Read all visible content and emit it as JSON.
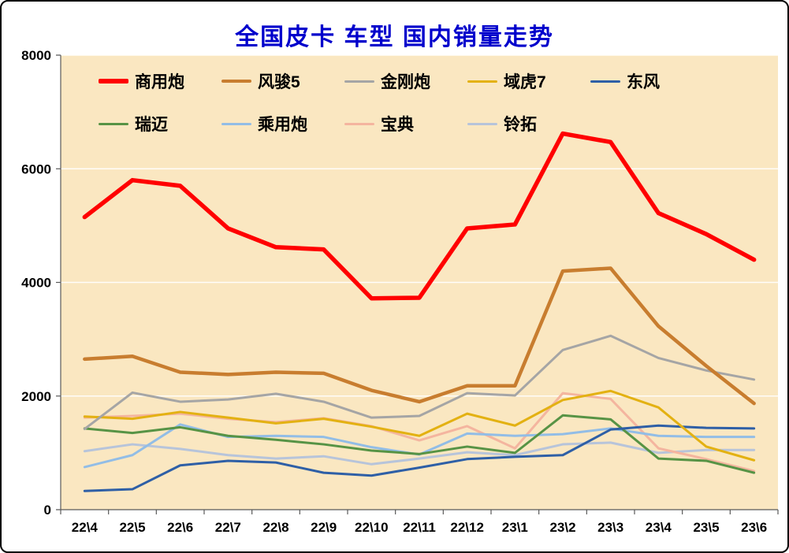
{
  "window": {
    "title": "全国皮卡 车型 国内销量走势"
  },
  "chart_data": {
    "type": "line",
    "title": "全国皮卡 车型 国内销量走势",
    "title_color": "#0000CC",
    "plot_bg": "#FAE7C1",
    "axis_color": "#595959",
    "gridline_color": "rgba(255,255,255,0.9)",
    "grid": "horizontal",
    "legend_position": "top-left-inside",
    "xlabel": "",
    "ylabel": "",
    "ylim": [
      0,
      8000
    ],
    "y_ticks": [
      0,
      2000,
      4000,
      6000,
      8000
    ],
    "categories": [
      "22\\4",
      "22\\5",
      "22\\6",
      "22\\7",
      "22\\8",
      "22\\9",
      "22\\10",
      "22\\11",
      "22\\12",
      "23\\1",
      "23\\2",
      "23\\3",
      "23\\4",
      "23\\5",
      "23\\6"
    ],
    "series": [
      {
        "name": "商用炮",
        "color": "#FF0000",
        "width": 5.5,
        "values": [
          5150,
          5800,
          5700,
          4950,
          4620,
          4580,
          3720,
          3730,
          4950,
          5020,
          6620,
          6470,
          5220,
          4850,
          4400
        ]
      },
      {
        "name": "风骏5",
        "color": "#C87D2F",
        "width": 4.5,
        "values": [
          2650,
          2700,
          2420,
          2380,
          2420,
          2400,
          2100,
          1900,
          2180,
          2180,
          4200,
          4250,
          3230,
          2530,
          1870
        ]
      },
      {
        "name": "金刚炮",
        "color": "#A5A5A5",
        "width": 3,
        "values": [
          1420,
          2060,
          1900,
          1940,
          2040,
          1900,
          1620,
          1650,
          2050,
          2010,
          2810,
          3060,
          2670,
          2450,
          2290
        ]
      },
      {
        "name": "域虎7",
        "color": "#E3B112",
        "width": 3,
        "values": [
          1640,
          1600,
          1720,
          1620,
          1520,
          1600,
          1460,
          1300,
          1690,
          1480,
          1930,
          2090,
          1800,
          1110,
          870
        ]
      },
      {
        "name": "东风",
        "color": "#2E5FA6",
        "width": 3,
        "values": [
          330,
          360,
          780,
          860,
          830,
          650,
          600,
          740,
          890,
          930,
          960,
          1410,
          1480,
          1440,
          1430
        ]
      },
      {
        "name": "瑞迈",
        "color": "#579345",
        "width": 3,
        "values": [
          1430,
          1350,
          1450,
          1300,
          1230,
          1150,
          1040,
          980,
          1110,
          1000,
          1660,
          1590,
          900,
          860,
          650
        ]
      },
      {
        "name": "乘用炮",
        "color": "#92BDE6",
        "width": 3,
        "values": [
          750,
          960,
          1500,
          1280,
          1300,
          1280,
          1100,
          970,
          1340,
          1300,
          1330,
          1430,
          1300,
          1280,
          1280
        ]
      },
      {
        "name": "宝典",
        "color": "#F4B59F",
        "width": 3,
        "values": [
          1620,
          1650,
          1690,
          1600,
          1540,
          1610,
          1470,
          1220,
          1470,
          1080,
          2050,
          1950,
          1080,
          890,
          680
        ]
      },
      {
        "name": "铃拓",
        "color": "#B7C4DA",
        "width": 3,
        "values": [
          1030,
          1150,
          1070,
          960,
          900,
          940,
          800,
          900,
          1010,
          960,
          1150,
          1180,
          1000,
          1050,
          1050
        ]
      }
    ]
  }
}
